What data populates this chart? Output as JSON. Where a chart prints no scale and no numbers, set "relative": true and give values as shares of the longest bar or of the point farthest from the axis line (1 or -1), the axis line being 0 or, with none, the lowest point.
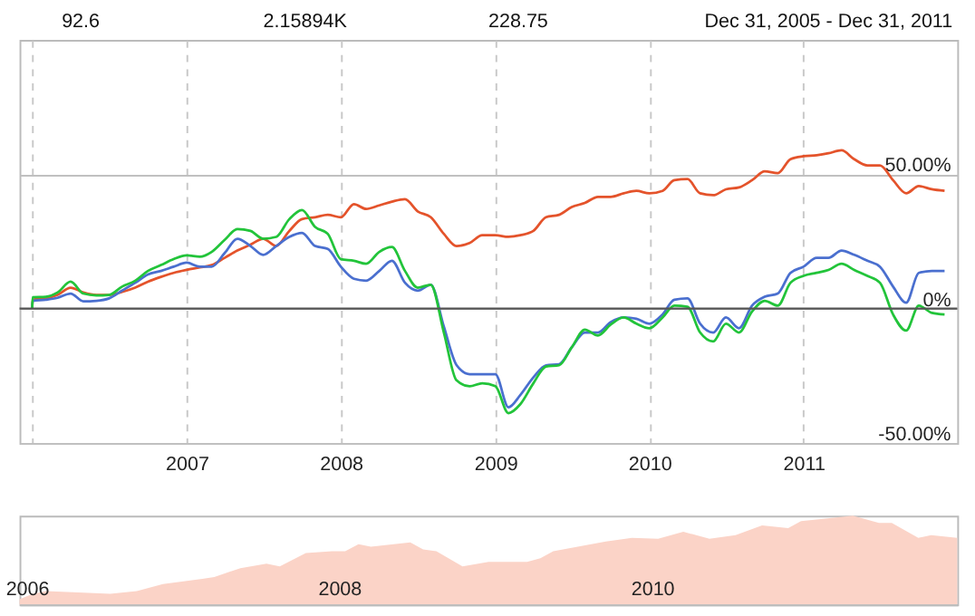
{
  "chart_data": [
    {
      "type": "line",
      "annotations": [
        "92.6",
        "2.15894K",
        "228.75",
        "Dec 31, 2005 - Dec 31, 2011"
      ],
      "x": [
        "2005-12-31",
        "2006-01",
        "2006-02",
        "2006-03",
        "2006-04",
        "2006-05",
        "2006-06",
        "2006-07",
        "2006-08",
        "2006-09",
        "2006-10",
        "2006-11",
        "2006-12",
        "2007-01",
        "2007-02",
        "2007-03",
        "2007-04",
        "2007-05",
        "2007-06",
        "2007-07",
        "2007-08",
        "2007-09",
        "2007-10",
        "2007-11",
        "2007-12",
        "2008-01",
        "2008-02",
        "2008-03",
        "2008-04",
        "2008-05",
        "2008-06",
        "2008-07",
        "2008-08",
        "2008-09",
        "2008-10",
        "2008-11",
        "2008-12",
        "2009-01",
        "2009-02",
        "2009-03",
        "2009-04",
        "2009-05",
        "2009-06",
        "2009-07",
        "2009-08",
        "2009-09",
        "2009-10",
        "2009-11",
        "2009-12",
        "2010-01",
        "2010-02",
        "2010-03",
        "2010-04",
        "2010-05",
        "2010-06",
        "2010-07",
        "2010-08",
        "2010-09",
        "2010-10",
        "2010-11",
        "2010-12",
        "2011-01",
        "2011-02",
        "2011-03",
        "2011-04",
        "2011-05",
        "2011-06",
        "2011-07",
        "2011-08",
        "2011-09",
        "2011-10",
        "2011-11",
        "2011-12"
      ],
      "series": [
        {
          "color": "#e4532b",
          "values": [
            0,
            3.3,
            3.8,
            5.1,
            7.8,
            6,
            5.1,
            5.1,
            6.2,
            7.8,
            10,
            11.8,
            13.3,
            14.4,
            15.3,
            16.2,
            18.9,
            21.6,
            23.8,
            26,
            23.3,
            28.9,
            33.3,
            34,
            34.9,
            34,
            38.9,
            37.1,
            38.4,
            39.8,
            40.7,
            36.2,
            34,
            27.8,
            23.3,
            24.4,
            27.3,
            27.3,
            26.7,
            27.3,
            28.9,
            34,
            34.9,
            37.8,
            39.3,
            41.6,
            41.6,
            42.9,
            43.8,
            42.9,
            43.8,
            47.8,
            48.2,
            42.9,
            42.2,
            44.4,
            45.1,
            47.8,
            51.1,
            50.4,
            55.6,
            56.7,
            57.1,
            57.8,
            58.9,
            55.6,
            53.3,
            53.3,
            47.8,
            42.9,
            45.6,
            44.4,
            43.8
          ]
        },
        {
          "color": "#4a6fcf",
          "values": [
            0,
            2.9,
            3.3,
            4,
            5.6,
            2.7,
            2.9,
            3.8,
            6.7,
            9.6,
            12.7,
            14,
            15.6,
            17.1,
            15.6,
            15.6,
            20.7,
            26,
            23.3,
            20,
            23.3,
            26.7,
            28.2,
            23.3,
            22.2,
            15.6,
            11.1,
            10.4,
            14,
            17.8,
            9.6,
            6.7,
            8.9,
            -6.7,
            -21,
            -24.4,
            -24.4,
            -24.4,
            -36.7,
            -32.2,
            -25.6,
            -21.1,
            -20.7,
            -14.4,
            -8.9,
            -8.9,
            -5.1,
            -3.3,
            -3.8,
            -5.6,
            -2.2,
            3.3,
            3.8,
            -5.6,
            -8.9,
            -3.3,
            -7.3,
            1.1,
            4.4,
            5.6,
            13.3,
            15.6,
            18.9,
            18.9,
            21.6,
            20,
            17.8,
            15.6,
            8.2,
            2.2,
            13.3,
            14,
            14
          ]
        },
        {
          "color": "#22c43a",
          "values": [
            0,
            4.2,
            4.4,
            6,
            10,
            5.6,
            4.9,
            5.1,
            8.2,
            10.4,
            14,
            16.2,
            18.4,
            19.8,
            19.3,
            21.1,
            25.6,
            29.6,
            28.9,
            26,
            26.7,
            33.3,
            36.7,
            30.4,
            27.8,
            18.4,
            17.8,
            16.7,
            21.1,
            22.9,
            14,
            7.8,
            8.9,
            -8.9,
            -26.7,
            -28.9,
            -27.8,
            -28.9,
            -38.9,
            -35.6,
            -27.8,
            -21.6,
            -21.1,
            -14.4,
            -7.8,
            -10,
            -6,
            -3.3,
            -5.6,
            -7.3,
            -3.3,
            1.1,
            0.7,
            -8.9,
            -12.2,
            -5.6,
            -8.9,
            -1.1,
            2.9,
            1.1,
            9.6,
            12.2,
            13.3,
            14.4,
            16.7,
            14.4,
            12.2,
            9.6,
            -2.2,
            -8.2,
            1.1,
            -1.6,
            -2.2
          ]
        }
      ],
      "xlim": [
        "2005-12-01",
        "2011-12-31"
      ],
      "xticks": [
        {
          "value": "2006-01-01",
          "label": null
        },
        {
          "value": "2007-01-01",
          "label": "2007"
        },
        {
          "value": "2008-01-01",
          "label": "2008"
        },
        {
          "value": "2009-01-01",
          "label": "2009"
        },
        {
          "value": "2010-01-01",
          "label": "2010"
        },
        {
          "value": "2011-01-01",
          "label": "2011"
        }
      ],
      "ylim": [
        -50,
        100
      ],
      "yticks": [
        {
          "value": -50,
          "label": "-50.00%"
        },
        {
          "value": 0,
          "label": "0%"
        },
        {
          "value": 50,
          "label": "50.00%"
        }
      ],
      "ref_lines": [
        {
          "axis": "y",
          "value": 0,
          "color": "#555555"
        }
      ],
      "grid": true,
      "legend": false,
      "line_style": "solid",
      "marker": "none"
    },
    {
      "type": "area",
      "relative": true,
      "x": [
        "2005-12-15",
        "2006-01-15",
        "2006-02-15",
        "2006-07-15",
        "2006-09-15",
        "2006-11-15",
        "2007-02-15",
        "2007-03-15",
        "2007-05-15",
        "2007-07-15",
        "2007-08-15",
        "2007-10-15",
        "2007-12-15",
        "2008-01-15",
        "2008-02-15",
        "2008-03-15",
        "2008-06-15",
        "2008-07-15",
        "2008-08-15",
        "2008-10-15",
        "2008-12-15",
        "2009-03-15",
        "2009-04-15",
        "2009-05-15",
        "2009-09-15",
        "2009-11-15",
        "2010-01-15",
        "2010-03-15",
        "2010-05-15",
        "2010-07-15",
        "2010-09-15",
        "2010-11-15",
        "2010-12-15",
        "2011-02-15",
        "2011-04-15",
        "2011-06-15",
        "2011-07-15",
        "2011-09-15",
        "2011-10-15",
        "2011-12-15"
      ],
      "series": [
        {
          "color": "#fbd3c7",
          "values": [
            0.06,
            0.12,
            0.15,
            0.12,
            0.15,
            0.23,
            0.29,
            0.31,
            0.41,
            0.46,
            0.43,
            0.58,
            0.6,
            0.6,
            0.68,
            0.65,
            0.7,
            0.62,
            0.6,
            0.43,
            0.48,
            0.48,
            0.52,
            0.6,
            0.71,
            0.75,
            0.74,
            0.82,
            0.74,
            0.78,
            0.89,
            0.86,
            0.94,
            0.97,
            1,
            0.92,
            0.92,
            0.75,
            0.78,
            0.75
          ]
        }
      ],
      "xlim": [
        "2005-12-15",
        "2011-12-15"
      ],
      "xticks": [
        {
          "value": "2006-01-01",
          "label": "2006"
        },
        {
          "value": "2008-01-01",
          "label": "2008"
        },
        {
          "value": "2010-01-01",
          "label": "2010"
        }
      ],
      "tick_labels": "x",
      "legend": false
    }
  ]
}
